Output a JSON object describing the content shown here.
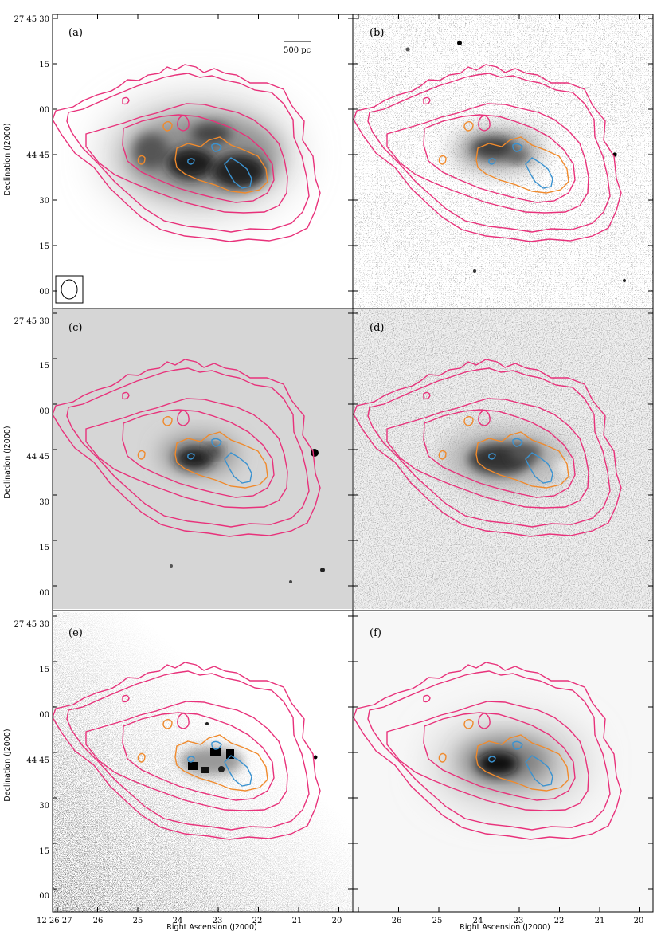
{
  "figure": {
    "y_axis_title": "Declination (J2000)",
    "x_axis_title": "Right Ascension (J2000)",
    "y_tick_labels": [
      "27 45 30",
      "15",
      "00",
      "44 45",
      "30",
      "15",
      "00"
    ],
    "x_tick_labels_left": [
      "12 26 27",
      "26",
      "25",
      "24",
      "23",
      "22",
      "21",
      "20"
    ],
    "x_tick_labels_right": [
      "26",
      "25",
      "24",
      "23",
      "22",
      "21",
      "20"
    ],
    "scale_bar_label": "500 pc",
    "panels": [
      {
        "id": "a",
        "label": "(a)",
        "image": "smooth grey emission map"
      },
      {
        "id": "b",
        "label": "(b)",
        "image": "optical image with stars"
      },
      {
        "id": "c",
        "label": "(c)",
        "image": "grey image with bright star"
      },
      {
        "id": "d",
        "label": "(d)",
        "image": "mottled grey emission map"
      },
      {
        "id": "e",
        "label": "(e)",
        "image": "speckled noisy image"
      },
      {
        "id": "f",
        "label": "(f)",
        "image": "smooth emission map"
      }
    ],
    "contour_colors": {
      "outer": "#e8317a",
      "middle": "#f08a2c",
      "inner": "#3a92d0"
    }
  }
}
